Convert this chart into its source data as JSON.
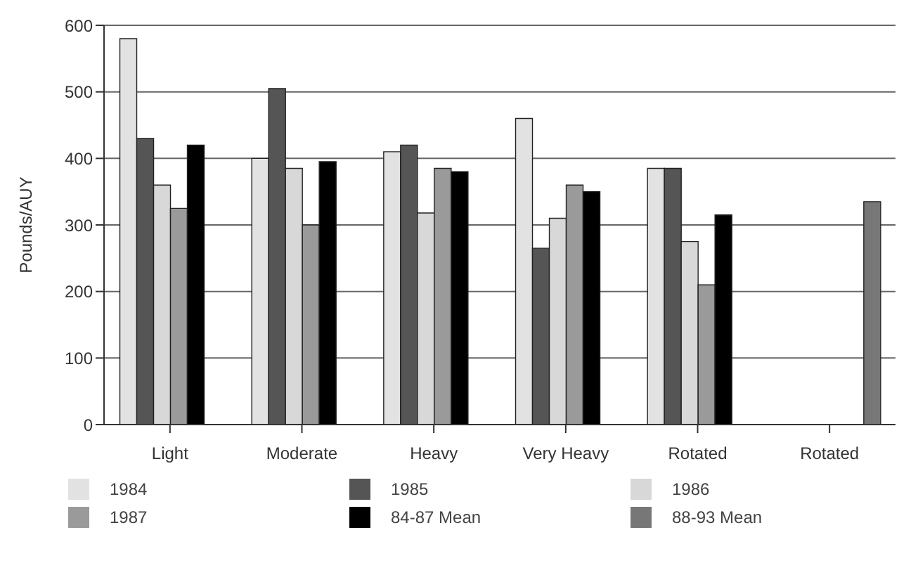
{
  "chart_data": {
    "type": "bar",
    "ylabel": "Pounds/AUY",
    "categories": [
      "Light",
      "Moderate",
      "Heavy",
      "Very Heavy",
      "Rotated",
      "Rotated"
    ],
    "series": [
      {
        "name": "1984",
        "color": "#e2e2e2",
        "values": [
          580,
          400,
          410,
          460,
          385,
          null
        ]
      },
      {
        "name": "1985",
        "color": "#555555",
        "values": [
          430,
          505,
          420,
          265,
          385,
          null
        ]
      },
      {
        "name": "1986",
        "color": "#d8d8d8",
        "values": [
          360,
          385,
          318,
          310,
          275,
          null
        ]
      },
      {
        "name": "1987",
        "color": "#9a9a9a",
        "values": [
          325,
          300,
          385,
          360,
          210,
          null
        ]
      },
      {
        "name": "84-87 Mean",
        "color": "#000000",
        "values": [
          420,
          395,
          380,
          350,
          315,
          null
        ]
      },
      {
        "name": "88-93 Mean",
        "color": "#777777",
        "values": [
          null,
          null,
          null,
          null,
          null,
          335
        ]
      }
    ],
    "ylim": [
      0,
      600
    ],
    "yticks": [
      0,
      100,
      200,
      300,
      400,
      500,
      600
    ],
    "grid": "y",
    "legend": "bottom"
  }
}
